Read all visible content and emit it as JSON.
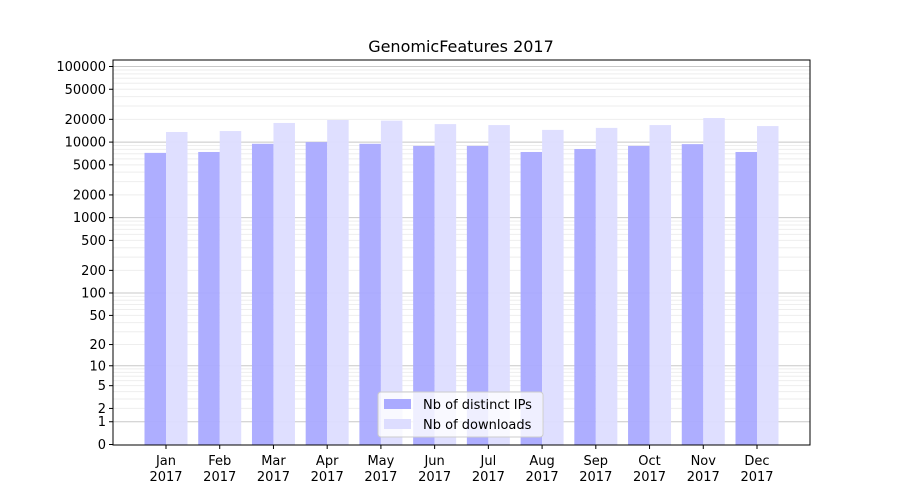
{
  "chart_data": {
    "type": "bar",
    "title": "GenomicFeatures 2017",
    "xlabel": "",
    "ylabel": "",
    "yscale": "log(y+1)",
    "ylim": [
      0,
      123000
    ],
    "yticks": [
      0,
      1,
      2,
      5,
      10,
      20,
      50,
      100,
      200,
      500,
      1000,
      2000,
      5000,
      10000,
      20000,
      50000,
      100000
    ],
    "categories": [
      "Jan\n2017",
      "Feb\n2017",
      "Mar\n2017",
      "Apr\n2017",
      "May\n2017",
      "Jun\n2017",
      "Jul\n2017",
      "Aug\n2017",
      "Sep\n2017",
      "Oct\n2017",
      "Nov\n2017",
      "Dec\n2017"
    ],
    "series": [
      {
        "name": "Nb of distinct IPs",
        "color": "#aaaaff",
        "values": [
          7200,
          7400,
          9500,
          10000,
          9500,
          8900,
          8900,
          7400,
          8100,
          8900,
          9400,
          7400
        ]
      },
      {
        "name": "Nb of downloads",
        "color": "#ddddff",
        "values": [
          13600,
          14000,
          17900,
          19600,
          19200,
          17300,
          16800,
          14500,
          15400,
          16800,
          20800,
          16300
        ]
      }
    ],
    "grid": true,
    "legend": "bottom-center"
  }
}
